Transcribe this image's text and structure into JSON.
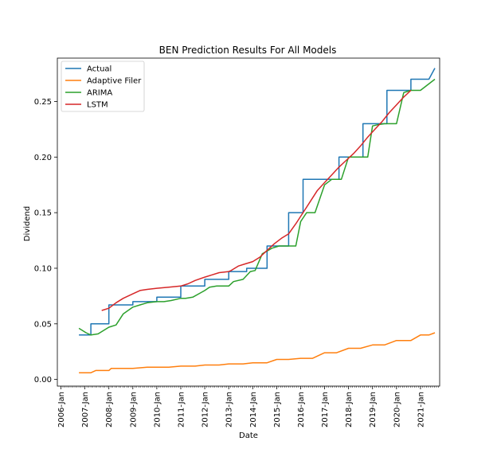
{
  "chart_data": {
    "type": "line",
    "title": "BEN Prediction Results For All Models",
    "xlabel": "Date",
    "ylabel": "Dividend",
    "x_tick_labels": [
      "2006-Jan",
      "2007-Jan",
      "2008-Jan",
      "2009-Jan",
      "2010-Jan",
      "2011-Jan",
      "2012-Jan",
      "2013-Jan",
      "2014-Jan",
      "2015-Jan",
      "2016-Jan",
      "2017-Jan",
      "2018-Jan",
      "2019-Jan",
      "2020-Jan",
      "2021-Jan"
    ],
    "y_ticks": [
      "0.00",
      "0.05",
      "0.10",
      "0.15",
      "0.20",
      "0.25"
    ],
    "y_tick_values": [
      0,
      0.05,
      0.1,
      0.15,
      0.2,
      0.25
    ],
    "xlim": [
      2005.85,
      2021.8
    ],
    "ylim": [
      -0.006,
      0.289
    ],
    "grid": false,
    "legend_position": "top-left",
    "series": [
      {
        "name": "Actual",
        "color": "#1f77b4",
        "x": [
          2006.75,
          2007.25,
          2007.25,
          2008.0,
          2008.0,
          2009.0,
          2009.0,
          2010.0,
          2010.0,
          2011.0,
          2011.0,
          2012.0,
          2012.0,
          2013.0,
          2013.0,
          2013.75,
          2013.75,
          2014.6,
          2014.6,
          2015.5,
          2015.5,
          2016.1,
          2016.1,
          2016.6,
          2016.6,
          2017.6,
          2017.6,
          2018.6,
          2018.6,
          2019.6,
          2019.6,
          2020.6,
          2020.6,
          2021.35,
          2021.6
        ],
        "y": [
          0.04,
          0.04,
          0.05,
          0.05,
          0.067,
          0.067,
          0.07,
          0.07,
          0.074,
          0.074,
          0.084,
          0.084,
          0.09,
          0.09,
          0.097,
          0.097,
          0.1,
          0.1,
          0.12,
          0.12,
          0.15,
          0.15,
          0.18,
          0.18,
          0.18,
          0.18,
          0.2,
          0.2,
          0.23,
          0.23,
          0.26,
          0.26,
          0.27,
          0.27,
          0.28
        ]
      },
      {
        "name": "Adaptive Filer",
        "color": "#ff7f0e",
        "x": [
          2006.75,
          2007.25,
          2007.45,
          2008.0,
          2008.1,
          2008.5,
          2009.0,
          2009.6,
          2010.0,
          2010.5,
          2011.0,
          2011.6,
          2012.0,
          2012.6,
          2013.0,
          2013.6,
          2014.0,
          2014.6,
          2015.0,
          2015.5,
          2016.0,
          2016.5,
          2017.0,
          2017.5,
          2018.0,
          2018.5,
          2019.0,
          2019.5,
          2020.0,
          2020.6,
          2021.0,
          2021.35,
          2021.6
        ],
        "y": [
          0.006,
          0.006,
          0.008,
          0.008,
          0.01,
          0.01,
          0.01,
          0.011,
          0.011,
          0.011,
          0.012,
          0.012,
          0.013,
          0.013,
          0.014,
          0.014,
          0.015,
          0.015,
          0.018,
          0.018,
          0.019,
          0.019,
          0.024,
          0.024,
          0.028,
          0.028,
          0.031,
          0.031,
          0.035,
          0.035,
          0.04,
          0.04,
          0.042
        ]
      },
      {
        "name": "ARIMA",
        "color": "#2ca02c",
        "x": [
          2006.75,
          2007.05,
          2007.25,
          2007.55,
          2008.0,
          2008.3,
          2008.6,
          2009.0,
          2009.3,
          2009.6,
          2010.0,
          2010.3,
          2010.6,
          2011.0,
          2011.2,
          2011.5,
          2012.0,
          2012.2,
          2012.5,
          2013.0,
          2013.2,
          2013.6,
          2013.9,
          2014.1,
          2014.4,
          2014.8,
          2015.1,
          2015.3,
          2015.6,
          2015.8,
          2016.0,
          2016.25,
          2016.6,
          2017.0,
          2017.3,
          2017.7,
          2018.0,
          2018.25,
          2018.6,
          2018.8,
          2019.0,
          2019.2,
          2019.5,
          2019.6,
          2019.8,
          2020.0,
          2020.3,
          2020.6,
          2020.8,
          2021.0,
          2021.6
        ],
        "y": [
          0.046,
          0.042,
          0.04,
          0.041,
          0.047,
          0.049,
          0.059,
          0.065,
          0.067,
          0.069,
          0.07,
          0.07,
          0.071,
          0.073,
          0.073,
          0.074,
          0.08,
          0.083,
          0.084,
          0.084,
          0.088,
          0.09,
          0.097,
          0.098,
          0.113,
          0.118,
          0.12,
          0.12,
          0.12,
          0.12,
          0.142,
          0.15,
          0.15,
          0.175,
          0.18,
          0.18,
          0.2,
          0.2,
          0.2,
          0.2,
          0.228,
          0.229,
          0.23,
          0.23,
          0.23,
          0.23,
          0.258,
          0.26,
          0.26,
          0.26,
          0.27
        ]
      },
      {
        "name": "LSTM",
        "color": "#d62728",
        "x": [
          2007.7,
          2008.0,
          2008.3,
          2008.6,
          2009.0,
          2009.3,
          2009.6,
          2010.0,
          2010.5,
          2011.0,
          2011.3,
          2011.6,
          2012.0,
          2012.3,
          2012.6,
          2013.0,
          2013.1,
          2013.4,
          2013.7,
          2014.0,
          2014.3,
          2014.6,
          2014.9,
          2015.2,
          2015.5,
          2015.8,
          2016.1,
          2016.4,
          2016.7,
          2017.0,
          2017.3,
          2017.6,
          2017.9,
          2018.2,
          2018.5,
          2018.8,
          2019.1,
          2019.4,
          2019.7,
          2020.0,
          2020.3,
          2020.6
        ],
        "y": [
          0.062,
          0.064,
          0.069,
          0.073,
          0.077,
          0.08,
          0.081,
          0.082,
          0.083,
          0.084,
          0.086,
          0.089,
          0.092,
          0.094,
          0.096,
          0.097,
          0.098,
          0.102,
          0.104,
          0.106,
          0.11,
          0.116,
          0.122,
          0.127,
          0.131,
          0.14,
          0.15,
          0.16,
          0.17,
          0.177,
          0.184,
          0.191,
          0.197,
          0.203,
          0.21,
          0.218,
          0.225,
          0.232,
          0.24,
          0.247,
          0.254,
          0.26
        ]
      }
    ]
  }
}
